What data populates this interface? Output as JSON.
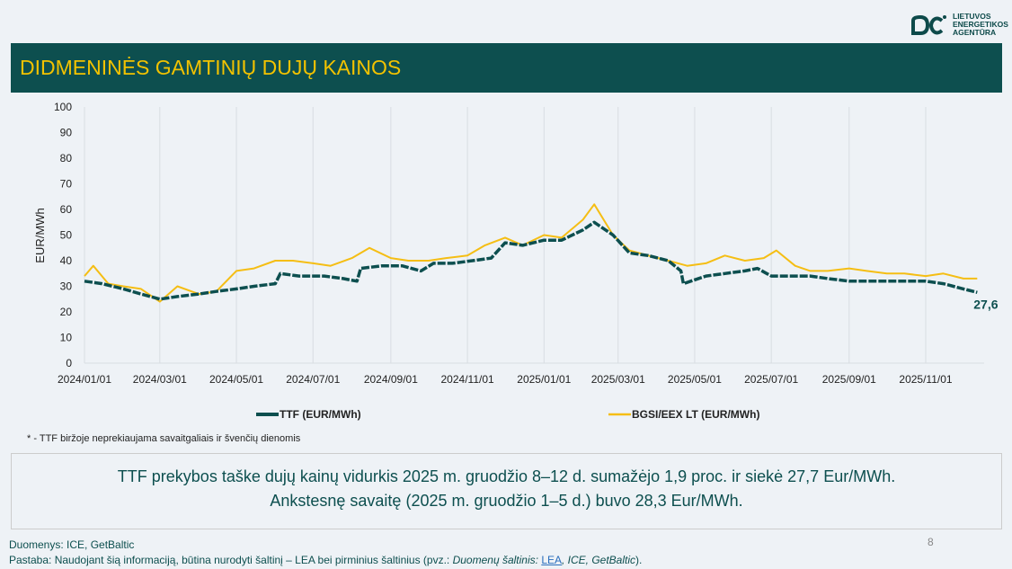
{
  "logo": {
    "lines": [
      "LIETUVOS",
      "ENERGETIKOS",
      "AGENTŪRA"
    ]
  },
  "title": "DIDMENINĖS GAMTINIŲ DUJŲ KAINOS",
  "chart_data": {
    "type": "line",
    "ylabel": "EUR/MWh",
    "ylim": [
      0,
      100
    ],
    "yticks": [
      0,
      10,
      20,
      30,
      40,
      50,
      60,
      70,
      80,
      90,
      100
    ],
    "xticks": [
      "2024/01/01",
      "2024/03/01",
      "2024/05/01",
      "2024/07/01",
      "2024/09/01",
      "2024/11/01",
      "2025/01/01",
      "2025/03/01",
      "2025/05/01",
      "2025/07/01",
      "2025/09/01",
      "2025/11/01"
    ],
    "grid": "vertical",
    "legend": "bottom",
    "end_label": "27,6",
    "series": [
      {
        "name": "TTF (EUR/MWh)",
        "color": "#0d4f4f",
        "dash": true,
        "x": [
          "2024-01-01",
          "2024-01-15",
          "2024-02-01",
          "2024-02-15",
          "2024-03-01",
          "2024-03-15",
          "2024-04-01",
          "2024-04-15",
          "2024-05-01",
          "2024-05-15",
          "2024-06-01",
          "2024-06-05",
          "2024-06-20",
          "2024-07-10",
          "2024-07-25",
          "2024-08-05",
          "2024-08-08",
          "2024-08-25",
          "2024-09-10",
          "2024-09-25",
          "2024-10-05",
          "2024-10-20",
          "2024-11-05",
          "2024-11-20",
          "2024-12-01",
          "2024-12-15",
          "2025-01-01",
          "2025-01-15",
          "2025-02-01",
          "2025-02-10",
          "2025-02-25",
          "2025-03-10",
          "2025-03-25",
          "2025-04-10",
          "2025-04-20",
          "2025-04-22",
          "2025-05-10",
          "2025-05-25",
          "2025-06-10",
          "2025-06-20",
          "2025-07-01",
          "2025-07-15",
          "2025-08-01",
          "2025-08-15",
          "2025-09-01",
          "2025-09-15",
          "2025-10-01",
          "2025-10-15",
          "2025-11-01",
          "2025-11-15",
          "2025-12-01",
          "2025-12-12"
        ],
        "y": [
          32,
          31,
          29,
          27,
          25,
          26,
          27,
          28,
          29,
          30,
          31,
          35,
          34,
          34,
          33,
          32,
          37,
          38,
          38,
          36,
          39,
          39,
          40,
          41,
          47,
          46,
          48,
          48,
          52,
          55,
          50,
          43,
          42,
          40,
          36,
          31,
          34,
          35,
          36,
          37,
          34,
          34,
          34,
          33,
          32,
          32,
          32,
          32,
          32,
          31,
          29,
          27.6
        ]
      },
      {
        "name": "BGSI/EEX LT (EUR/MWh)",
        "color": "#f5be14",
        "dash": false,
        "x": [
          "2024-01-01",
          "2024-01-08",
          "2024-01-20",
          "2024-02-01",
          "2024-02-15",
          "2024-03-01",
          "2024-03-15",
          "2024-04-01",
          "2024-04-15",
          "2024-05-01",
          "2024-05-15",
          "2024-06-01",
          "2024-06-15",
          "2024-07-01",
          "2024-07-15",
          "2024-08-01",
          "2024-08-15",
          "2024-09-01",
          "2024-09-15",
          "2024-10-01",
          "2024-10-15",
          "2024-11-01",
          "2024-11-15",
          "2024-12-01",
          "2024-12-15",
          "2025-01-01",
          "2025-01-15",
          "2025-02-01",
          "2025-02-10",
          "2025-02-25",
          "2025-03-10",
          "2025-03-25",
          "2025-04-10",
          "2025-04-25",
          "2025-05-10",
          "2025-05-25",
          "2025-06-10",
          "2025-06-25",
          "2025-07-05",
          "2025-07-20",
          "2025-08-01",
          "2025-08-15",
          "2025-09-01",
          "2025-09-15",
          "2025-10-01",
          "2025-10-15",
          "2025-11-01",
          "2025-11-15",
          "2025-12-01",
          "2025-12-12"
        ],
        "y": [
          34,
          38,
          31,
          30,
          29,
          24,
          30,
          27,
          28,
          36,
          37,
          40,
          40,
          39,
          38,
          41,
          45,
          41,
          40,
          40,
          41,
          42,
          46,
          49,
          46,
          50,
          49,
          56,
          62,
          50,
          44,
          42,
          40,
          38,
          39,
          42,
          40,
          41,
          44,
          38,
          36,
          36,
          37,
          36,
          35,
          35,
          34,
          35,
          33,
          33
        ]
      }
    ]
  },
  "footnote": "* - TTF biržoje neprekiaujama savaitgaliais ir švenčių dienomis",
  "summary": [
    "TTF prekybos taške dujų kainų vidurkis 2025 m. gruodžio 8–12 d. sumažėjo 1,9 proc. ir siekė 27,7 Eur/MWh.",
    "Ankstesnę savaitę (2025 m. gruodžio 1–5 d.) buvo 28,3 Eur/MWh."
  ],
  "page_number": "8",
  "sources": {
    "line1": "Duomenys: ICE, GetBaltic",
    "line2_prefix": "Pastaba: Naudojant šią informaciją, būtina nurodyti šaltinį – LEA bei pirminius šaltinius (pvz.: ",
    "line2_italic": "Duomenų šaltinis: ",
    "link": "LEA",
    "line2_rest": ", ICE, GetBaltic",
    "line2_end": ")."
  }
}
